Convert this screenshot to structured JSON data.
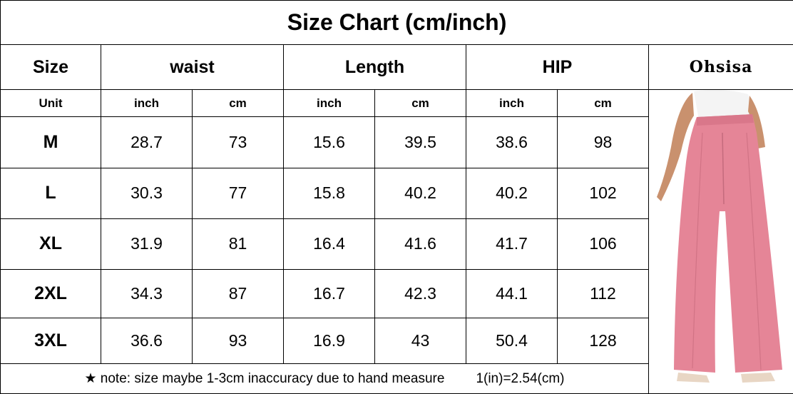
{
  "title": "Size Chart (cm/inch)",
  "header": {
    "size": "Size",
    "groups": [
      "waist",
      "Length",
      "HIP"
    ],
    "brand": "Ohsisa"
  },
  "units": {
    "label": "Unit",
    "values": [
      "inch",
      "cm",
      "inch",
      "cm",
      "inch",
      "cm"
    ]
  },
  "table": {
    "rows": [
      [
        "M",
        "28.7",
        "73",
        "15.6",
        "39.5",
        "38.6",
        "98"
      ],
      [
        "L",
        "30.3",
        "77",
        "15.8",
        "40.2",
        "40.2",
        "102"
      ],
      [
        "XL",
        "31.9",
        "81",
        "16.4",
        "41.6",
        "41.7",
        "106"
      ],
      [
        "2XL",
        "34.3",
        "87",
        "16.7",
        "42.3",
        "44.1",
        "112"
      ],
      [
        "3XL",
        "36.6",
        "93",
        "16.9",
        "43",
        "50.4",
        "128"
      ]
    ]
  },
  "note": {
    "text": "★ note: size maybe 1-3cm inaccuracy due to hand measure",
    "conversion": "1(in)=2.54(cm)"
  }
}
